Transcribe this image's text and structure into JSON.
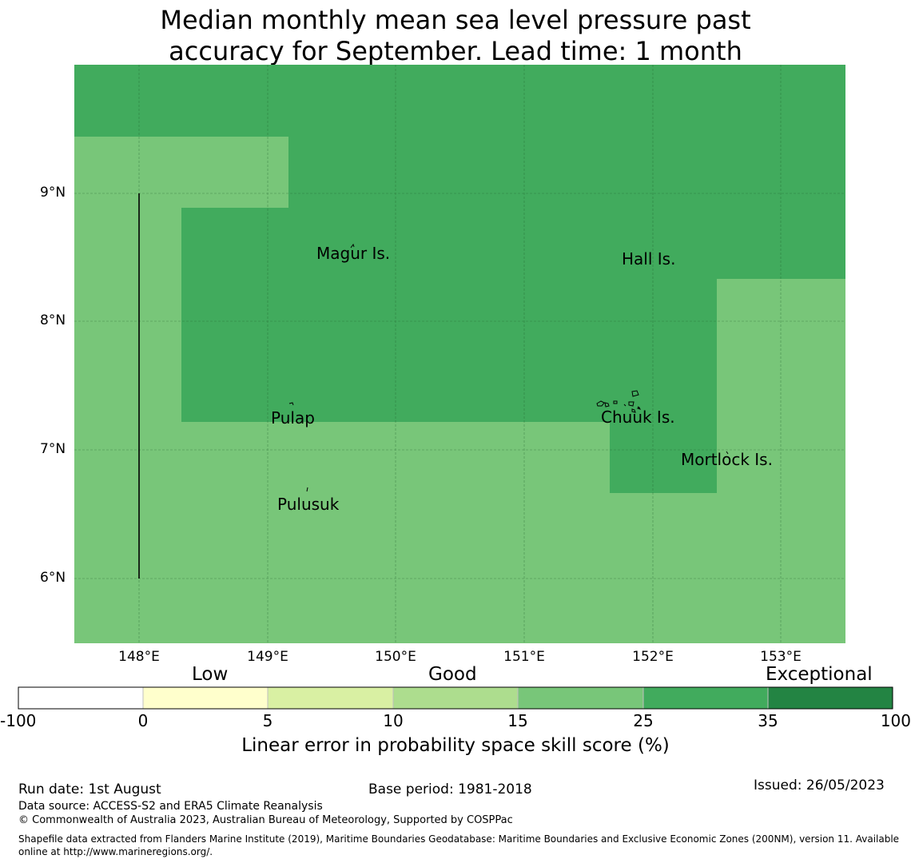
{
  "title": {
    "line1": "Median monthly mean sea level pressure past",
    "line2": "accuracy for September. Lead time: 1 month"
  },
  "map": {
    "lat_labels": [
      "9°N",
      "8°N",
      "7°N",
      "6°N"
    ],
    "lon_labels": [
      "148°E",
      "149°E",
      "150°E",
      "151°E",
      "152°E",
      "153°E"
    ],
    "lon_range": [
      147.5,
      153.5
    ],
    "lat_range": [
      5.5,
      10.0
    ],
    "places": [
      {
        "name": "Magur Is.",
        "lon": 149.66,
        "lat": 8.52
      },
      {
        "name": "Hall Is.",
        "lon": 151.98,
        "lat": 8.48
      },
      {
        "name": "Pulap",
        "lon": 149.21,
        "lat": 7.25
      },
      {
        "name": "Chuuk Is.",
        "lon": 151.89,
        "lat": 7.26
      },
      {
        "name": "Mortlock Is.",
        "lon": 152.58,
        "lat": 6.93
      },
      {
        "name": "Pulusuk",
        "lon": 149.33,
        "lat": 6.58
      }
    ],
    "skill_regions": [
      {
        "category": "25-35",
        "bbox_deg": [
          147.5,
          9.44,
          153.5,
          10.0
        ]
      },
      {
        "category": "15-25",
        "bbox_deg": [
          147.5,
          5.5,
          153.5,
          9.44
        ]
      }
    ]
  },
  "legend": {
    "category_labels": [
      "Low",
      "Good",
      "Exceptional"
    ],
    "ticks": [
      "-100",
      "0",
      "5",
      "10",
      "15",
      "25",
      "35",
      "100"
    ],
    "colors": [
      "#ffffff",
      "#ffffcc",
      "#d9f0a3",
      "#addd8e",
      "#78c679",
      "#41ab5d",
      "#238443"
    ],
    "title": "Linear error in probability space skill score (%)"
  },
  "footer": {
    "run_date": "Run date: 1st August",
    "base_period": "Base period: 1981-2018",
    "issued": "Issued: 26/05/2023",
    "data_source": "Data source: ACCESS-S2 and ERA5 Climate Reanalysis",
    "copyright": "© Commonwealth of Australia 2023, Australian Bureau of Meteorology, Supported by COSPPac",
    "shapefile_line1": "Shapefile data extracted from Flanders Marine Institute (2019), Maritime Boundaries Geodatabase: Maritime Boundaries and Exclusive Economic Zones (200NM), version 11. Available",
    "shapefile_line2": "online at http://www.marineregions.org/."
  }
}
